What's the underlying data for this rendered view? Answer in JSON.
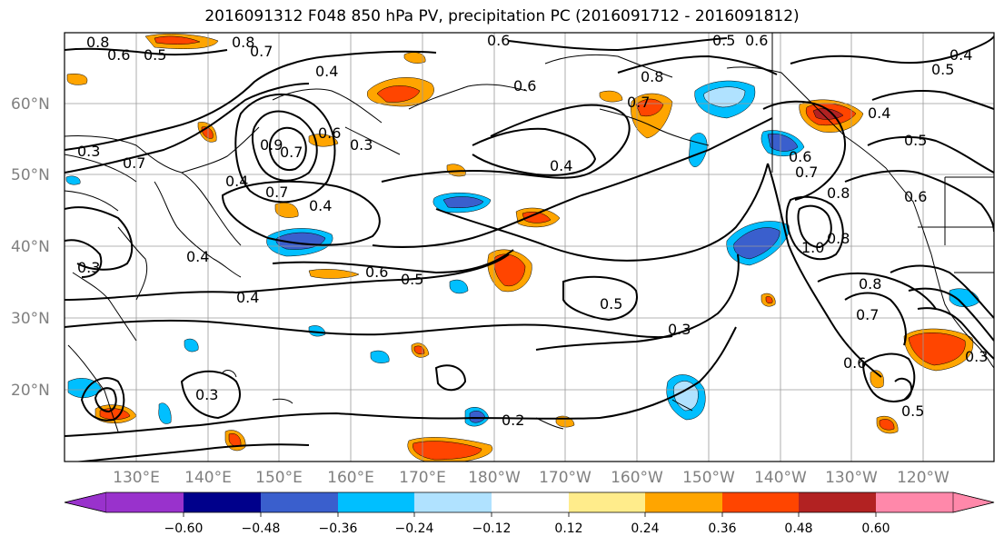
{
  "title": "2016091312 F048 850 hPa PV, precipitation PC (2016091712 - 2016091812)",
  "lat_labels": [
    "60°N",
    "50°N",
    "40°N",
    "30°N",
    "20°N"
  ],
  "lon_labels": [
    "130°E",
    "140°E",
    "150°E",
    "160°E",
    "170°E",
    "180°W",
    "170°W",
    "160°W",
    "150°W",
    "140°W",
    "130°W",
    "120°W"
  ],
  "contour_labels": [
    "0.8",
    "0.6",
    "0.5",
    "0.7",
    "0.8",
    "0.6",
    "0.5",
    "0.6",
    "0.4",
    "0.4",
    "0.5",
    "0.6",
    "0.8",
    "0.7",
    "0.3",
    "0.7",
    "0.9",
    "0.3",
    "0.7",
    "0.6",
    "0.4",
    "0.7",
    "0.5",
    "0.4",
    "0.3",
    "0.4",
    "0.4",
    "0.6",
    "0.5",
    "0.4",
    "0.5",
    "0.3",
    "0.2",
    "0.3",
    "0.7",
    "0.6",
    "0.8",
    "1.0",
    "0.8",
    "0.6",
    "0.7",
    "0.6",
    "0.5",
    "0.8",
    "0.4",
    "0.3"
  ],
  "colorbar": {
    "ticks": [
      "−0.60",
      "−0.48",
      "−0.36",
      "−0.24",
      "−0.12",
      "0.12",
      "0.24",
      "0.36",
      "0.48",
      "0.60"
    ],
    "colors": [
      "#9932cc",
      "#00008b",
      "#3a5fcd",
      "#00bfff",
      "#b0e2ff",
      "#ffffff",
      "#ffec8b",
      "#ffa500",
      "#ff4500",
      "#b22222",
      "#ff88aa"
    ]
  }
}
